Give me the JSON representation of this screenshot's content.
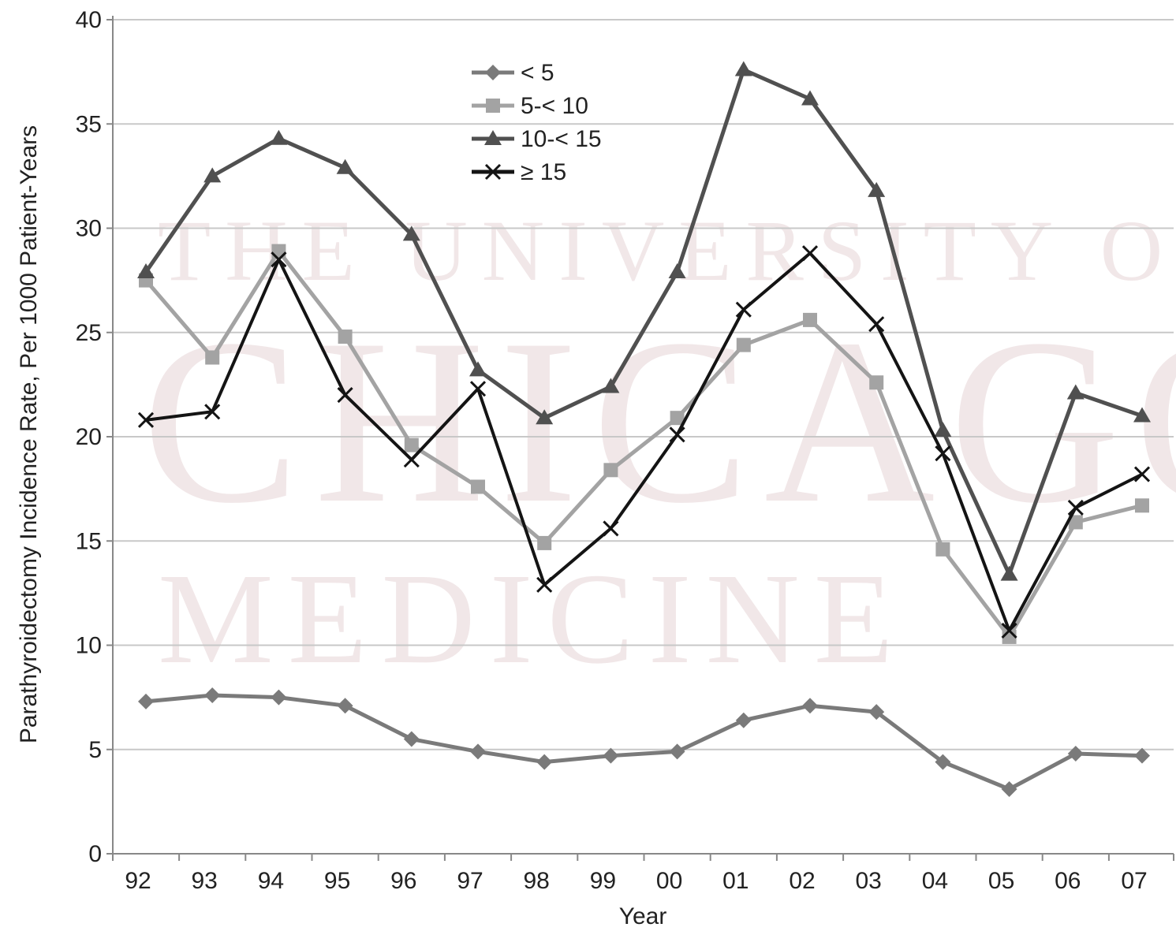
{
  "watermark": {
    "line1": "THE UNIVERSITY OF",
    "line2": "CHICAGO",
    "line3": "MEDICINE"
  },
  "chart_data": {
    "type": "line",
    "xlabel": "Year",
    "ylabel": "Parathyroidectomy Incidence Rate, Per 1000 Patient-Years",
    "ylim": [
      0,
      40
    ],
    "yticks": [
      "0",
      "5",
      "10",
      "15",
      "20",
      "25",
      "30",
      "35",
      "40"
    ],
    "categories": [
      "92",
      "93",
      "94",
      "95",
      "96",
      "97",
      "98",
      "99",
      "00",
      "01",
      "02",
      "03",
      "04",
      "05",
      "06",
      "07"
    ],
    "grid": "horizontal",
    "legend_position": "top-center",
    "series": [
      {
        "name": "< 5",
        "marker": "diamond",
        "color": "#7a7a7a",
        "values": [
          7.3,
          7.6,
          7.5,
          7.1,
          5.5,
          4.9,
          4.4,
          4.7,
          4.9,
          6.4,
          7.1,
          6.8,
          4.4,
          3.1,
          4.8,
          4.7
        ]
      },
      {
        "name": "5-< 10",
        "marker": "square",
        "color": "#a3a3a3",
        "values": [
          27.5,
          23.8,
          28.9,
          24.8,
          19.6,
          17.6,
          14.9,
          18.4,
          20.9,
          24.4,
          25.6,
          22.6,
          14.6,
          10.4,
          15.9,
          16.7
        ]
      },
      {
        "name": "10-< 15",
        "marker": "triangle",
        "color": "#505050",
        "values": [
          27.9,
          32.5,
          34.3,
          32.9,
          29.7,
          23.2,
          20.9,
          22.4,
          27.9,
          37.6,
          36.2,
          31.8,
          20.3,
          13.4,
          22.1,
          21.0
        ]
      },
      {
        "name": "≥ 15",
        "marker": "cross",
        "color": "#141414",
        "values": [
          20.8,
          21.2,
          28.5,
          22.0,
          18.9,
          22.3,
          12.9,
          15.6,
          20.1,
          26.1,
          28.8,
          25.4,
          19.2,
          10.7,
          16.6,
          18.2
        ]
      }
    ]
  }
}
